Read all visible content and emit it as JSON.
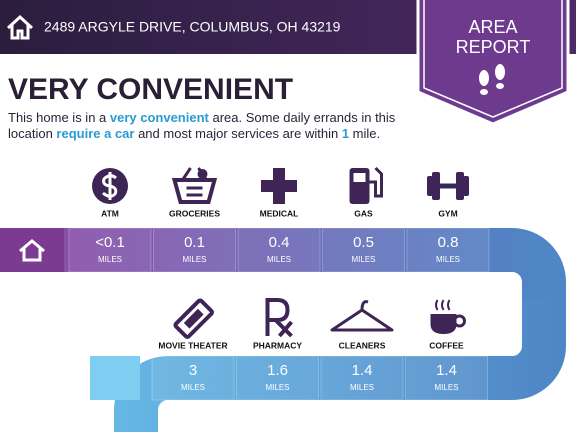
{
  "header": {
    "address": "2489 ARGYLE DRIVE, COLUMBUS, OH 43219",
    "badge": [
      "AREA",
      "REPORT"
    ]
  },
  "headline": "VERY CONVENIENT",
  "description": [
    "This home is in a ",
    "very convenient",
    " area. Some daily errands in this location ",
    "require a car",
    " and most major services are within ",
    "1",
    " mile."
  ],
  "unit": "MILES",
  "rows": [
    [
      {
        "name": "ATM",
        "distance": "<0.1"
      },
      {
        "name": "GROCERIES",
        "distance": "0.1"
      },
      {
        "name": "MEDICAL",
        "distance": "0.4"
      },
      {
        "name": "GAS",
        "distance": "0.5"
      },
      {
        "name": "GYM",
        "distance": "0.8"
      }
    ],
    [
      {
        "name": "MOVIE THEATER",
        "distance": "3"
      },
      {
        "name": "PHARMACY",
        "distance": "1.6"
      },
      {
        "name": "CLEANERS",
        "distance": "1.4"
      },
      {
        "name": "COFFEE",
        "distance": "1.4"
      }
    ]
  ]
}
